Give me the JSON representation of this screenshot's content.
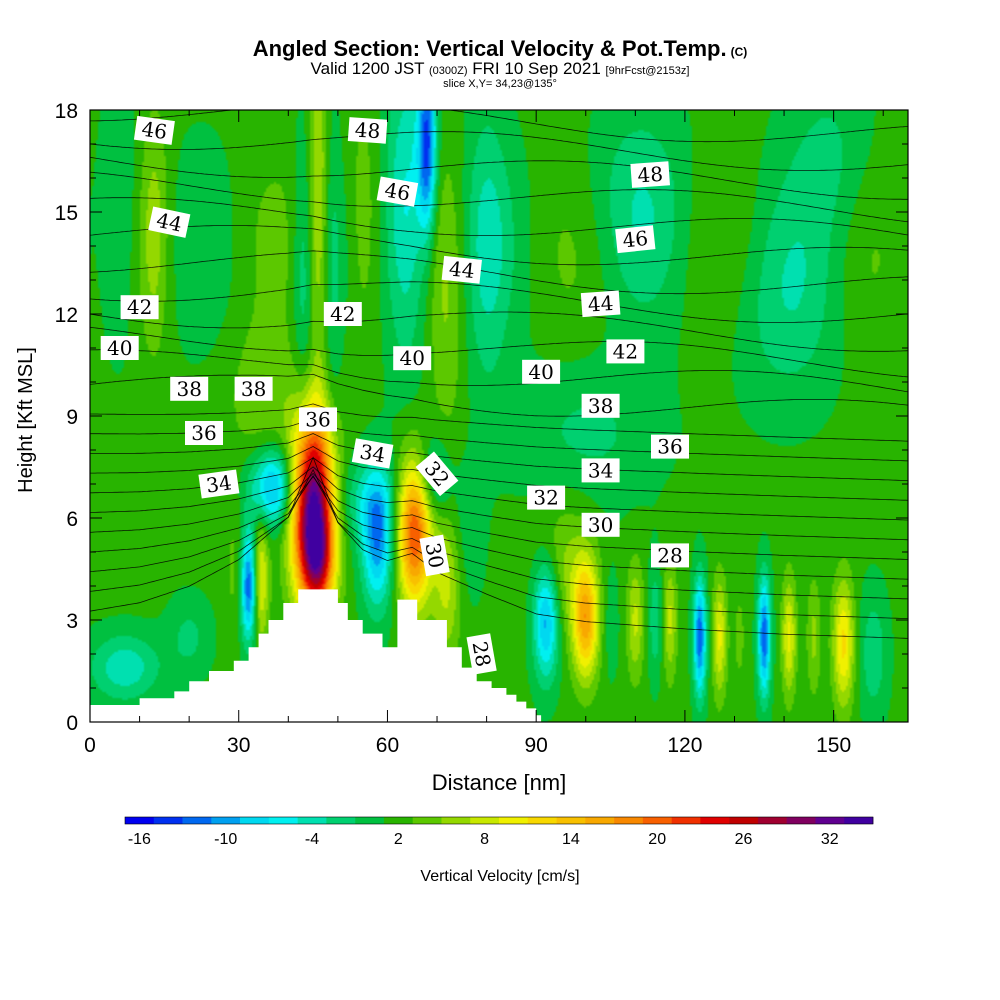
{
  "header": {
    "title": "Angled Section: Vertical Velocity & Pot.Temp.",
    "copyright": "(C)",
    "valid_prefix": "Valid 1200 JST",
    "valid_zulu": "(0300Z)",
    "valid_date": "FRI 10 Sep 2021",
    "forecast": "[9hrFcst@2153z]",
    "slice": "slice X,Y= 34,23@135°"
  },
  "chart_data": {
    "type": "heatmap",
    "xlabel": "Distance [nm]",
    "ylabel": "Height [Kft MSL]",
    "xlim": [
      0,
      165
    ],
    "ylim": [
      0,
      18
    ],
    "xticks": [
      0,
      30,
      60,
      90,
      120,
      150
    ],
    "yticks": [
      0,
      3,
      6,
      9,
      12,
      15,
      18
    ],
    "colorbar": {
      "label": "Vertical Velocity [cm/s]",
      "min": -17,
      "max": 35,
      "step": 2,
      "tick_labels": [
        -16,
        -10,
        -4,
        2,
        8,
        14,
        20,
        26,
        32
      ],
      "colors": [
        "#0000f0",
        "#0030f0",
        "#0068f0",
        "#00a0f0",
        "#00d8f0",
        "#00f0f0",
        "#00e0b0",
        "#00d070",
        "#00c040",
        "#28b400",
        "#5cc800",
        "#94d800",
        "#c8e800",
        "#f0f000",
        "#f8d800",
        "#f8c000",
        "#f8a800",
        "#f88800",
        "#f86000",
        "#f03000",
        "#e00000",
        "#c00000",
        "#a00030",
        "#800060",
        "#600090",
        "#4000a0"
      ]
    },
    "terrain_profile": {
      "x": [
        0,
        10,
        10,
        17,
        17,
        20,
        20,
        24,
        24,
        29,
        29,
        32,
        32,
        34,
        34,
        36,
        36,
        39,
        39,
        42,
        42,
        50,
        50,
        52,
        52,
        55,
        55,
        59,
        59,
        62,
        62,
        66,
        66,
        72,
        72,
        75,
        75,
        78,
        78,
        81,
        81,
        84,
        84,
        86,
        86,
        88,
        88,
        90,
        90,
        91,
        91,
        165
      ],
      "y": [
        0.5,
        0.5,
        0.7,
        0.7,
        0.9,
        0.9,
        1.2,
        1.2,
        1.5,
        1.5,
        1.8,
        1.8,
        2.2,
        2.2,
        2.6,
        2.6,
        3.0,
        3.0,
        3.5,
        3.5,
        3.9,
        3.9,
        3.5,
        3.5,
        3.0,
        3.0,
        2.6,
        2.6,
        2.2,
        2.2,
        3.6,
        3.6,
        3.0,
        3.0,
        2.2,
        2.2,
        1.6,
        1.6,
        1.2,
        1.2,
        1.0,
        1.0,
        0.8,
        0.8,
        0.6,
        0.6,
        0.4,
        0.4,
        0.2,
        0.2,
        0.0,
        0.0
      ]
    },
    "w_cells": [
      {
        "x": 45,
        "y": 6.3,
        "sx": 3.0,
        "sy": 1.9,
        "w": 32
      },
      {
        "x": 46,
        "y": 4.7,
        "sx": 2.2,
        "sy": 1.0,
        "w": 12
      },
      {
        "x": 37,
        "y": 6.9,
        "sx": 3.2,
        "sy": 0.8,
        "w": -12
      },
      {
        "x": 32,
        "y": 4.0,
        "sx": 1.1,
        "sy": 1.1,
        "w": -14
      },
      {
        "x": 34.5,
        "y": 4.2,
        "sx": 1.1,
        "sy": 1.3,
        "w": 8
      },
      {
        "x": 29,
        "y": 4.5,
        "sx": 1.3,
        "sy": 1.4,
        "w": 2
      },
      {
        "x": 58,
        "y": 5.4,
        "sx": 2.2,
        "sy": 1.4,
        "w": -12
      },
      {
        "x": 55,
        "y": 6.5,
        "sx": 5.0,
        "sy": 0.9,
        "w": -4
      },
      {
        "x": 65.5,
        "y": 5.6,
        "sx": 2.4,
        "sy": 1.5,
        "w": 20
      },
      {
        "x": 69,
        "y": 7.1,
        "sx": 2.5,
        "sy": 0.9,
        "w": -6
      },
      {
        "x": 72,
        "y": 4.0,
        "sx": 2.0,
        "sy": 1.5,
        "w": 6
      },
      {
        "x": 76,
        "y": 5.5,
        "sx": 2.5,
        "sy": 1.5,
        "w": -2
      },
      {
        "x": 46,
        "y": 15.5,
        "sx": 1.3,
        "sy": 3.5,
        "w": 6
      },
      {
        "x": 43,
        "y": 13.0,
        "sx": 1.5,
        "sy": 3.0,
        "w": -4
      },
      {
        "x": 49,
        "y": 12.0,
        "sx": 1.2,
        "sy": 4.0,
        "w": -2
      },
      {
        "x": 55,
        "y": 14.5,
        "sx": 2.5,
        "sy": 2.5,
        "w": 4
      },
      {
        "x": 64,
        "y": 15.0,
        "sx": 3.0,
        "sy": 3.0,
        "w": -8
      },
      {
        "x": 68,
        "y": 17.0,
        "sx": 1.3,
        "sy": 1.8,
        "w": -14
      },
      {
        "x": 72,
        "y": 12.0,
        "sx": 2.5,
        "sy": 3.0,
        "w": 3
      },
      {
        "x": 80,
        "y": 14.0,
        "sx": 3.0,
        "sy": 3.0,
        "w": -4
      },
      {
        "x": 6,
        "y": 14.5,
        "sx": 3.0,
        "sy": 2.5,
        "w": -4
      },
      {
        "x": 13,
        "y": 14.5,
        "sx": 2.0,
        "sy": 2.5,
        "w": 4
      },
      {
        "x": 92,
        "y": 3.0,
        "sx": 1.8,
        "sy": 1.2,
        "w": -12
      },
      {
        "x": 100,
        "y": 3.0,
        "sx": 1.8,
        "sy": 1.2,
        "w": 14
      },
      {
        "x": 96,
        "y": 4.5,
        "sx": 4.0,
        "sy": 1.5,
        "w": 4
      },
      {
        "x": 105,
        "y": 3.0,
        "sx": 1.2,
        "sy": 1.2,
        "w": -2
      },
      {
        "x": 110,
        "y": 3.0,
        "sx": 1.2,
        "sy": 1.2,
        "w": 6
      },
      {
        "x": 114,
        "y": 3.0,
        "sx": 1.0,
        "sy": 1.2,
        "w": -4
      },
      {
        "x": 117,
        "y": 3.0,
        "sx": 1.0,
        "sy": 1.2,
        "w": 6
      },
      {
        "x": 123,
        "y": 2.5,
        "sx": 0.9,
        "sy": 1.2,
        "w": -14
      },
      {
        "x": 127,
        "y": 2.5,
        "sx": 1.0,
        "sy": 1.2,
        "w": 8
      },
      {
        "x": 131,
        "y": 2.5,
        "sx": 1.0,
        "sy": 1.2,
        "w": 2
      },
      {
        "x": 136,
        "y": 2.5,
        "sx": 0.9,
        "sy": 1.2,
        "w": -14
      },
      {
        "x": 141,
        "y": 2.5,
        "sx": 1.0,
        "sy": 1.2,
        "w": 8
      },
      {
        "x": 146,
        "y": 2.5,
        "sx": 1.0,
        "sy": 1.2,
        "w": 4
      },
      {
        "x": 152,
        "y": 2.3,
        "sx": 1.5,
        "sy": 1.3,
        "w": 10
      },
      {
        "x": 158,
        "y": 2.0,
        "sx": 2.0,
        "sy": 1.3,
        "w": -4
      },
      {
        "x": 7,
        "y": 1.6,
        "sx": 5.0,
        "sy": 0.7,
        "w": -6
      },
      {
        "x": 20,
        "y": 2.5,
        "sx": 3.0,
        "sy": 0.8,
        "w": -3
      },
      {
        "x": 140,
        "y": 12.0,
        "sx": 8.0,
        "sy": 2.0,
        "w": -3
      },
      {
        "x": 110,
        "y": 15.5,
        "sx": 8.0,
        "sy": 2.0,
        "w": -3
      },
      {
        "x": 150,
        "y": 16.5,
        "sx": 6.0,
        "sy": 2.0,
        "w": -3
      },
      {
        "x": 35,
        "y": 9.5,
        "sx": 5.0,
        "sy": 1.5,
        "w": 3
      },
      {
        "x": 100,
        "y": 8.5,
        "sx": 10.0,
        "sy": 1.5,
        "w": -3
      }
    ],
    "theta_contours": {
      "min": 27,
      "max": 49,
      "step": 1,
      "control_x": [
        0,
        10,
        20,
        30,
        40,
        45,
        50,
        55,
        60,
        65,
        70,
        80,
        90,
        100,
        120,
        140,
        165
      ],
      "fractions": [
        0.0,
        0.05,
        0.14,
        0.28,
        0.5,
        0.8,
        0.48,
        0.35,
        0.3,
        0.34,
        0.25,
        0.15,
        0.06,
        0.03,
        0.01,
        0.0,
        0.0
      ]
    },
    "theta_labels": [
      {
        "text": "46",
        "x": 13,
        "y": 17.4,
        "angle": 8
      },
      {
        "text": "48",
        "x": 56,
        "y": 17.4,
        "angle": 4
      },
      {
        "text": "46",
        "x": 62,
        "y": 15.6,
        "angle": 10
      },
      {
        "text": "44",
        "x": 16,
        "y": 14.7,
        "angle": 12
      },
      {
        "text": "48",
        "x": 113,
        "y": 16.1,
        "angle": -4
      },
      {
        "text": "46",
        "x": 110,
        "y": 14.2,
        "angle": -6
      },
      {
        "text": "44",
        "x": 75,
        "y": 13.3,
        "angle": 6
      },
      {
        "text": "44",
        "x": 103,
        "y": 12.3,
        "angle": -4
      },
      {
        "text": "42",
        "x": 10,
        "y": 12.2,
        "angle": 0
      },
      {
        "text": "42",
        "x": 51,
        "y": 12.0,
        "angle": 0
      },
      {
        "text": "40",
        "x": 65,
        "y": 10.7,
        "angle": 0
      },
      {
        "text": "42",
        "x": 108,
        "y": 10.9,
        "angle": 0
      },
      {
        "text": "40",
        "x": 6,
        "y": 11.0,
        "angle": 0
      },
      {
        "text": "40",
        "x": 91,
        "y": 10.3,
        "angle": 0
      },
      {
        "text": "38",
        "x": 20,
        "y": 9.8,
        "angle": 0
      },
      {
        "text": "38",
        "x": 33,
        "y": 9.8,
        "angle": 0
      },
      {
        "text": "38",
        "x": 103,
        "y": 9.3,
        "angle": 0
      },
      {
        "text": "36",
        "x": 46,
        "y": 8.9,
        "angle": 0
      },
      {
        "text": "36",
        "x": 23,
        "y": 8.5,
        "angle": 0
      },
      {
        "text": "36",
        "x": 117,
        "y": 8.1,
        "angle": 0
      },
      {
        "text": "34",
        "x": 57,
        "y": 7.9,
        "angle": 10
      },
      {
        "text": "32",
        "x": 70,
        "y": 7.3,
        "angle": 50
      },
      {
        "text": "34",
        "x": 103,
        "y": 7.4,
        "angle": 0
      },
      {
        "text": "34",
        "x": 26,
        "y": 7.0,
        "angle": -8
      },
      {
        "text": "32",
        "x": 92,
        "y": 6.6,
        "angle": 0
      },
      {
        "text": "30",
        "x": 103,
        "y": 5.8,
        "angle": 0
      },
      {
        "text": "30",
        "x": 69.5,
        "y": 4.9,
        "angle": 80
      },
      {
        "text": "28",
        "x": 117,
        "y": 4.9,
        "angle": 0
      },
      {
        "text": "28",
        "x": 79,
        "y": 2.0,
        "angle": 80
      }
    ]
  }
}
